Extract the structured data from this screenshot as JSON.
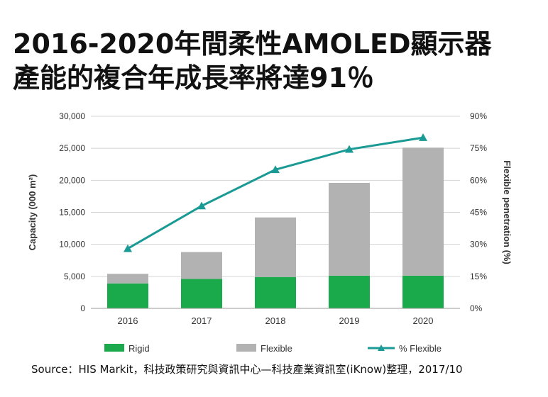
{
  "title": {
    "line1": "2016-2020年間柔性AMOLED顯示器",
    "line2": "產能的複合年成長率將達91％"
  },
  "source": "Source：HIS Markit，科技政策研究與資訊中心—科技產業資訊室(iKnow)整理，2017/10",
  "chart_data": {
    "type": "bar",
    "stacked": true,
    "categories": [
      "2016",
      "2017",
      "2018",
      "2019",
      "2020"
    ],
    "series": [
      {
        "name": "Rigid",
        "type": "bar",
        "axis": "left",
        "color": "#1aaa4b",
        "values": [
          3900,
          4600,
          4900,
          5100,
          5100
        ]
      },
      {
        "name": "Flexible",
        "type": "bar",
        "axis": "left",
        "color": "#b2b2b2",
        "values": [
          1500,
          4200,
          9300,
          14500,
          20000
        ]
      },
      {
        "name": "% Flexible",
        "type": "line",
        "axis": "right",
        "color": "#1a9a94",
        "values": [
          28,
          48,
          65,
          74.5,
          80
        ]
      }
    ],
    "ylabel": "Capacity (000 m²)",
    "y2label": "Flexible penetration (%)",
    "ylim": [
      0,
      30000
    ],
    "y2lim": [
      0,
      90
    ],
    "yticks": [
      "0",
      "5,000",
      "10,000",
      "15,000",
      "20,000",
      "25,000",
      "30,000"
    ],
    "y2ticks": [
      "0%",
      "15%",
      "30%",
      "45%",
      "60%",
      "75%",
      "90%"
    ],
    "grid": true,
    "legend": "bottom"
  }
}
